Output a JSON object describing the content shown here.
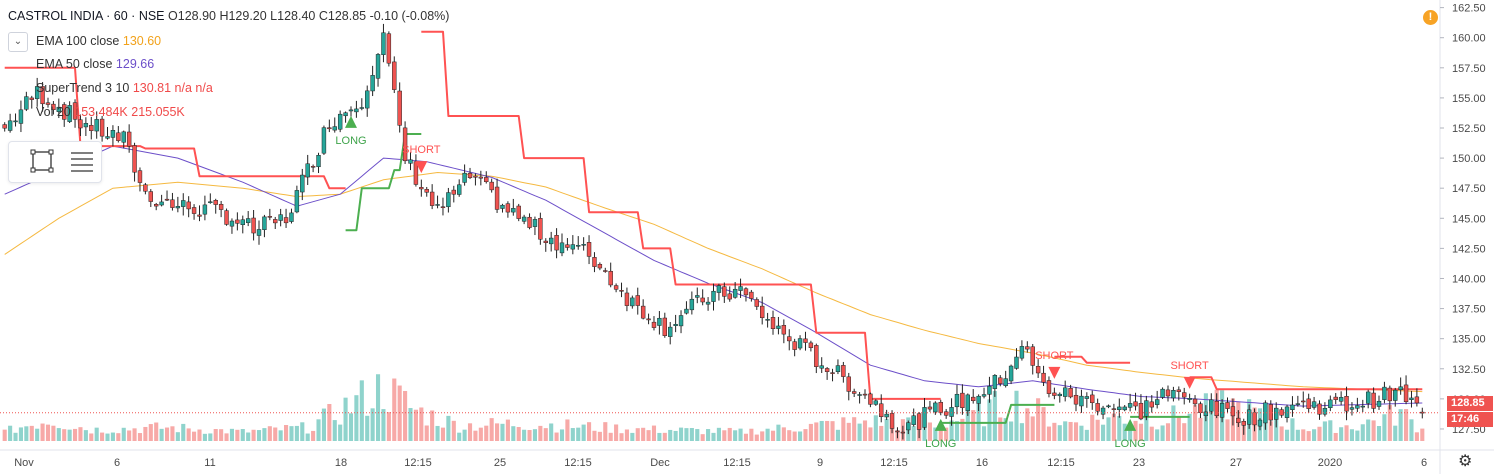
{
  "header": {
    "symbol": "CASTROL INDIA · 60 · NSE",
    "ohlc": "O128.90 H129.20 L128.40 C128.85 -0.10 (-0.08%)"
  },
  "indicators": [
    {
      "label": "EMA 100 close",
      "value": "130.60",
      "color": "#f2a21b"
    },
    {
      "label": "EMA 50 close",
      "value": "129.66",
      "color": "#6c4fc9"
    },
    {
      "label": "SuperTrend 3 10",
      "value": "130.81 n/a n/a",
      "color": "#f04a4a"
    },
    {
      "label": "Vol 20",
      "value": "153.484K 215.055K",
      "color": "#f04a4a"
    }
  ],
  "price_tags": {
    "last_price": "128.85",
    "countdown": "17:46"
  },
  "colors": {
    "up": "#26a69a",
    "down": "#ef5350",
    "ema100": "#f5b941",
    "ema50": "#6c4fc9",
    "st_up": "#4caf50",
    "st_down": "#ff5252"
  },
  "chart_data": {
    "type": "candlestick",
    "y_axis": {
      "ticks": [
        "162.50",
        "160.00",
        "157.50",
        "155.00",
        "152.50",
        "150.00",
        "147.50",
        "145.00",
        "142.50",
        "140.00",
        "137.50",
        "135.00",
        "132.50",
        "130.00",
        "127.50"
      ],
      "range": [
        126.5,
        162.8
      ]
    },
    "x_axis": {
      "ticks": [
        "Nov",
        "6",
        "11",
        "18",
        "12:15",
        "25",
        "12:15",
        "Dec",
        "12:15",
        "9",
        "12:15",
        "16",
        "12:15",
        "23",
        "27",
        "2020",
        "6"
      ]
    },
    "last_price": 128.85,
    "series_keypoints": {
      "close": [
        [
          0,
          152.5
        ],
        [
          6,
          155.5
        ],
        [
          14,
          153
        ],
        [
          22,
          151.5
        ],
        [
          26,
          147
        ],
        [
          32,
          146
        ],
        [
          40,
          145.5
        ],
        [
          46,
          144
        ],
        [
          52,
          145
        ],
        [
          60,
          153
        ],
        [
          66,
          155
        ],
        [
          70,
          160
        ],
        [
          74,
          150
        ],
        [
          80,
          145.5
        ],
        [
          86,
          148.5
        ],
        [
          92,
          146
        ],
        [
          100,
          143.5
        ],
        [
          108,
          142
        ],
        [
          116,
          138
        ],
        [
          122,
          136
        ],
        [
          130,
          138.5
        ],
        [
          136,
          139
        ],
        [
          142,
          136
        ],
        [
          148,
          134
        ],
        [
          154,
          132
        ],
        [
          160,
          130
        ],
        [
          166,
          127.5
        ],
        [
          172,
          129
        ],
        [
          178,
          130
        ],
        [
          184,
          131.5
        ],
        [
          188,
          134.5
        ],
        [
          192,
          131
        ],
        [
          198,
          130
        ],
        [
          204,
          129.5
        ],
        [
          210,
          129
        ],
        [
          214,
          130.5
        ],
        [
          218,
          130
        ],
        [
          224,
          129
        ],
        [
          230,
          128.5
        ],
        [
          238,
          129.5
        ],
        [
          248,
          129.5
        ],
        [
          258,
          130.5
        ],
        [
          262,
          128.85
        ]
      ],
      "ema50": [
        [
          0,
          147
        ],
        [
          20,
          151
        ],
        [
          32,
          150
        ],
        [
          44,
          148
        ],
        [
          54,
          146
        ],
        [
          62,
          147
        ],
        [
          70,
          150
        ],
        [
          78,
          149.7
        ],
        [
          90,
          148.4
        ],
        [
          100,
          146.5
        ],
        [
          110,
          144
        ],
        [
          120,
          141.5
        ],
        [
          130,
          139.6
        ],
        [
          140,
          138
        ],
        [
          150,
          135.5
        ],
        [
          160,
          132.8
        ],
        [
          170,
          131.5
        ],
        [
          180,
          131
        ],
        [
          190,
          131.5
        ],
        [
          200,
          130.8
        ],
        [
          210,
          130.2
        ],
        [
          220,
          130
        ],
        [
          240,
          129.4
        ],
        [
          262,
          129.66
        ]
      ],
      "ema100": [
        [
          0,
          142
        ],
        [
          10,
          145
        ],
        [
          20,
          147.5
        ],
        [
          32,
          148
        ],
        [
          44,
          147.5
        ],
        [
          54,
          146.8
        ],
        [
          62,
          147
        ],
        [
          70,
          148.2
        ],
        [
          80,
          148.8
        ],
        [
          90,
          148.5
        ],
        [
          100,
          147.6
        ],
        [
          110,
          146
        ],
        [
          120,
          144.5
        ],
        [
          130,
          142.5
        ],
        [
          140,
          140.8
        ],
        [
          150,
          138.8
        ],
        [
          160,
          137
        ],
        [
          170,
          135.7
        ],
        [
          180,
          134.6
        ],
        [
          190,
          133.8
        ],
        [
          200,
          132.8
        ],
        [
          210,
          132.2
        ],
        [
          220,
          131.7
        ],
        [
          240,
          131
        ],
        [
          262,
          130.6
        ]
      ],
      "volume": [
        [
          0,
          0.3
        ],
        [
          8,
          0.9
        ],
        [
          16,
          0.4
        ],
        [
          30,
          0.5
        ],
        [
          44,
          0.3
        ],
        [
          56,
          0.5
        ],
        [
          70,
          2.4
        ],
        [
          76,
          1.3
        ],
        [
          84,
          0.6
        ],
        [
          96,
          0.7
        ],
        [
          110,
          0.5
        ],
        [
          120,
          0.4
        ],
        [
          136,
          0.3
        ],
        [
          150,
          0.6
        ],
        [
          160,
          0.8
        ],
        [
          170,
          0.6
        ],
        [
          180,
          1.1
        ],
        [
          186,
          1.8
        ],
        [
          196,
          0.7
        ],
        [
          206,
          1.0
        ],
        [
          214,
          0.9
        ],
        [
          226,
          1.6
        ],
        [
          240,
          0.5
        ],
        [
          250,
          0.6
        ],
        [
          258,
          1.2
        ],
        [
          262,
          0.4
        ]
      ]
    },
    "supertrend": [
      {
        "dir": "down",
        "from": 0,
        "to": 63,
        "levels": [
          [
            0,
            157.5
          ],
          [
            14,
            151
          ],
          [
            26,
            150.8
          ],
          [
            36,
            148.5
          ],
          [
            60,
            147.5
          ]
        ]
      },
      {
        "dir": "up",
        "from": 63,
        "to": 77,
        "levels": [
          [
            63,
            144
          ],
          [
            66,
            147.5
          ],
          [
            72,
            149
          ],
          [
            74,
            152
          ]
        ]
      },
      {
        "dir": "down",
        "from": 77,
        "to": 173,
        "levels": [
          [
            77,
            160.5
          ],
          [
            82,
            153.5
          ],
          [
            96,
            150
          ],
          [
            108,
            145.5
          ],
          [
            118,
            142.5
          ],
          [
            124,
            139.5
          ],
          [
            150,
            135.5
          ],
          [
            160,
            130
          ]
        ]
      },
      {
        "dir": "up",
        "from": 173,
        "to": 194,
        "levels": [
          [
            173,
            128
          ],
          [
            186,
            129.5
          ]
        ]
      },
      {
        "dir": "down",
        "from": 194,
        "to": 208,
        "levels": [
          [
            194,
            133.5
          ],
          [
            200,
            133
          ]
        ]
      },
      {
        "dir": "up",
        "from": 208,
        "to": 219,
        "levels": [
          [
            208,
            128.5
          ]
        ]
      },
      {
        "dir": "down",
        "from": 219,
        "to": 262,
        "levels": [
          [
            219,
            131.8
          ],
          [
            224,
            130.8
          ]
        ]
      }
    ],
    "signals": [
      {
        "type": "LONG",
        "at": 64
      },
      {
        "type": "SHORT",
        "at": 77
      },
      {
        "type": "LONG",
        "at": 173
      },
      {
        "type": "SHORT",
        "at": 194
      },
      {
        "type": "LONG",
        "at": 208
      },
      {
        "type": "SHORT",
        "at": 219
      }
    ]
  }
}
